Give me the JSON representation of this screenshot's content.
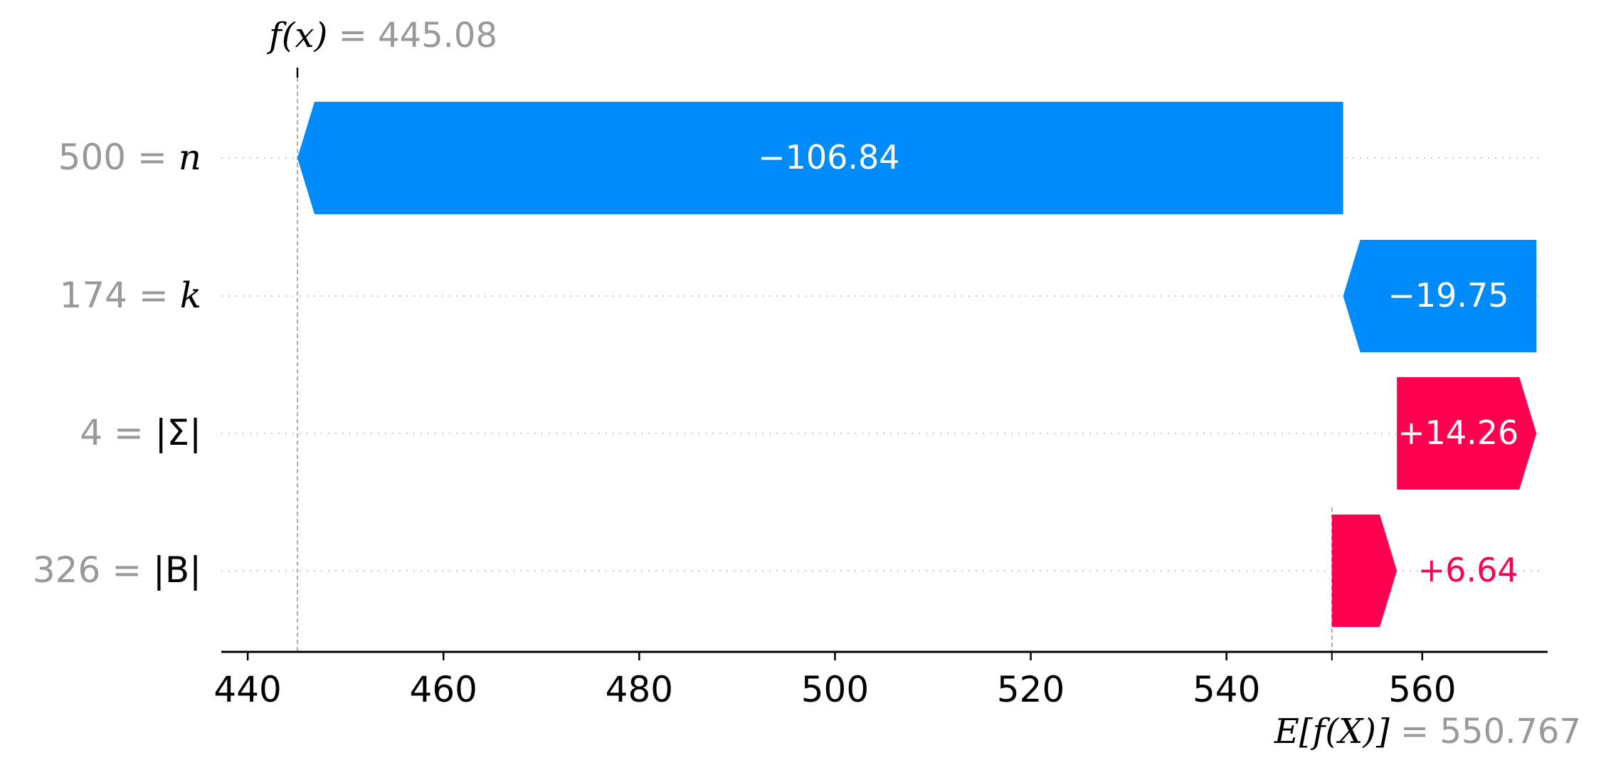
{
  "chart_data": {
    "type": "bar",
    "subtype": "waterfall",
    "features": [
      {
        "value_label": "500",
        "name": "n",
        "contribution": -106.84,
        "label": "−106.84"
      },
      {
        "value_label": "174",
        "name": "k",
        "contribution": -19.75,
        "label": "−19.75"
      },
      {
        "value_label": "4",
        "name": "|Σ|",
        "contribution": 14.26,
        "label": "+14.26"
      },
      {
        "value_label": "326",
        "name": "|B|",
        "contribution": 6.64,
        "label": "+6.64"
      }
    ],
    "fx": {
      "label": "f(x)",
      "value": 445.08,
      "value_label": "445.08"
    },
    "base": {
      "label": "E[f(X)]",
      "value": 550.767,
      "value_label": "550.767"
    },
    "x_ticks": [
      "440",
      "460",
      "480",
      "500",
      "520",
      "540",
      "560"
    ],
    "x_tick_values": [
      440,
      460,
      480,
      500,
      520,
      540,
      560
    ],
    "xlim": [
      437.3,
      573.1
    ],
    "colors": {
      "negative": "#008bfb",
      "positive": "#ff0051",
      "axis": "#000000",
      "muted": "#999999",
      "grid": "#cccccc"
    }
  }
}
